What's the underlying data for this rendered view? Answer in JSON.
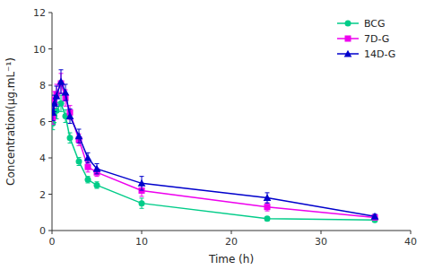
{
  "chart_data": {
    "type": "line",
    "xlabel": "Time (h)",
    "ylabel": "Concentration(μg.mL⁻¹)",
    "xlim": [
      0,
      40
    ],
    "ylim": [
      0,
      12
    ],
    "xticks": [
      0,
      10,
      20,
      30,
      40
    ],
    "yticks": [
      0,
      2,
      4,
      6,
      8,
      10,
      12
    ],
    "legend": "upper right",
    "series": [
      {
        "name": "BCG",
        "color": "#00cc88",
        "marker": "circle",
        "x": [
          0.083,
          0.25,
          0.5,
          1.0,
          1.5,
          2.0,
          3.0,
          4.0,
          5.0,
          10.0,
          24.0,
          36.0
        ],
        "values": [
          5.9,
          6.3,
          6.6,
          7.0,
          6.3,
          5.1,
          3.8,
          2.8,
          2.5,
          1.5,
          0.65,
          0.58
        ],
        "errors": [
          0.35,
          0.35,
          0.45,
          0.45,
          0.35,
          0.28,
          0.22,
          0.18,
          0.18,
          0.28,
          0.1,
          0.08
        ]
      },
      {
        "name": "7D-G",
        "color": "#ee00ee",
        "marker": "square",
        "x": [
          0.083,
          0.25,
          0.5,
          1.0,
          1.5,
          2.0,
          3.0,
          4.0,
          5.0,
          10.0,
          24.0,
          36.0
        ],
        "values": [
          6.2,
          7.2,
          7.5,
          8.1,
          7.3,
          6.5,
          5.0,
          3.5,
          3.2,
          2.2,
          1.3,
          0.72
        ],
        "errors": [
          0.35,
          0.45,
          0.55,
          0.55,
          0.45,
          0.38,
          0.32,
          0.28,
          0.22,
          0.32,
          0.22,
          0.1
        ]
      },
      {
        "name": "14D-G",
        "color": "#0000cc",
        "marker": "triangle",
        "x": [
          0.083,
          0.25,
          0.5,
          1.0,
          1.5,
          2.0,
          3.0,
          4.0,
          5.0,
          10.0,
          24.0,
          36.0
        ],
        "values": [
          6.5,
          7.0,
          7.4,
          8.2,
          7.6,
          6.3,
          5.2,
          4.0,
          3.4,
          2.6,
          1.8,
          0.78
        ],
        "errors": [
          0.45,
          0.45,
          0.55,
          0.65,
          0.45,
          0.4,
          0.38,
          0.28,
          0.28,
          0.38,
          0.28,
          0.12
        ]
      }
    ]
  }
}
